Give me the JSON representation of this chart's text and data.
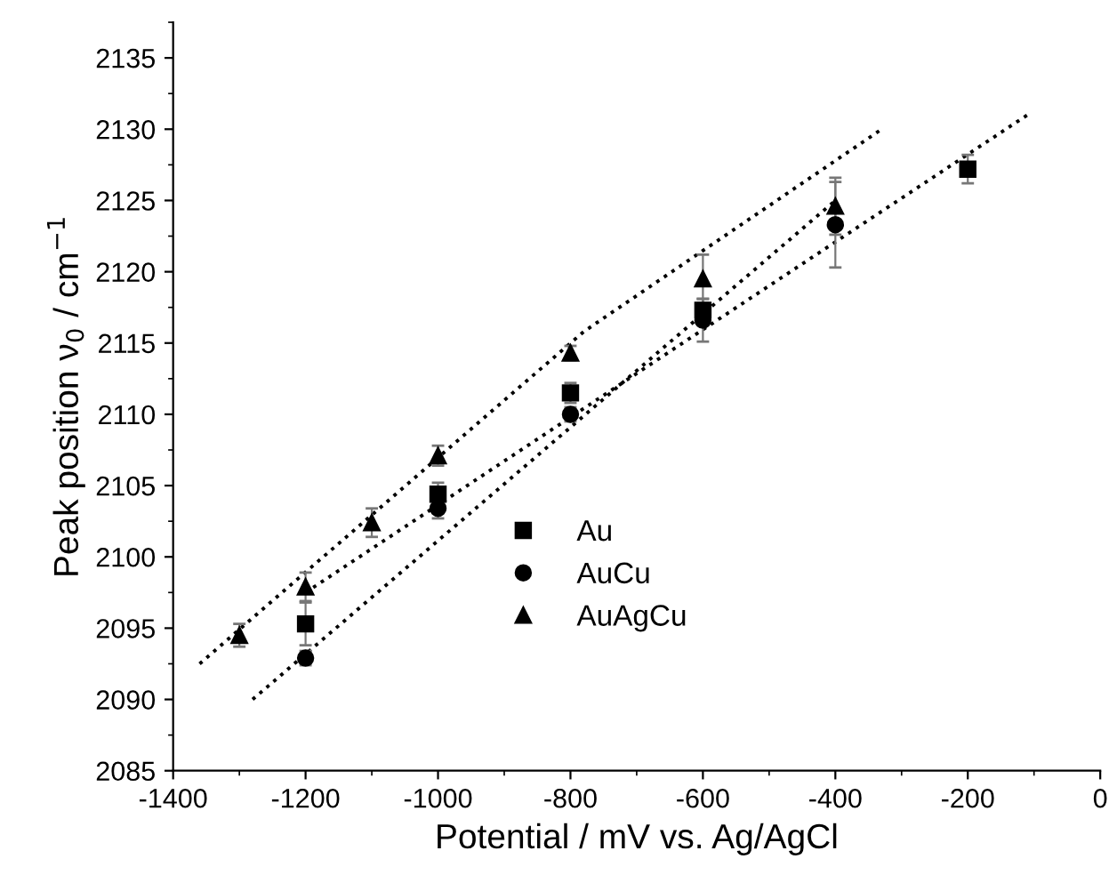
{
  "chart_data": {
    "type": "scatter",
    "xlabel": "Potential / mV vs. Ag/AgCl",
    "ylabel": "Peak position ν$_{0}$ / cm$^{−1}$",
    "xlim": [
      -1400,
      0
    ],
    "ylim": [
      2085,
      2137.5
    ],
    "xticks": [
      -1400,
      -1200,
      -1000,
      -800,
      -600,
      -400,
      -200,
      0
    ],
    "yticks": [
      2085,
      2090,
      2095,
      2100,
      2105,
      2110,
      2115,
      2120,
      2125,
      2130,
      2135
    ],
    "legend": "bottom",
    "grid": false,
    "series": [
      {
        "name": "Au",
        "color": "#000000",
        "marker": "square",
        "x": [
          -1200,
          -1000,
          -800,
          -600,
          -400,
          -200
        ],
        "values": [
          2095.3,
          2104.4,
          2111.5,
          2117.3,
          null,
          2127.2
        ],
        "errors": [
          1.5,
          0.8,
          0.7,
          0.8,
          null,
          1.0
        ]
      },
      {
        "name": "AuCu",
        "color": "#000000",
        "marker": "circle",
        "x": [
          -1200,
          -1000,
          -800,
          -600,
          -400
        ],
        "values": [
          2092.9,
          2103.4,
          2110.0,
          2116.6,
          2123.3
        ],
        "errors": [
          0.5,
          0.7,
          0.5,
          1.5,
          3.0
        ]
      },
      {
        "name": "AuAgCu",
        "color": "#000000",
        "marker": "triangle",
        "x": [
          -1300,
          -1200,
          -1100,
          -1000,
          -800,
          -600,
          -400
        ],
        "values": [
          2094.5,
          2097.9,
          2102.4,
          2107.1,
          2114.3,
          2119.5,
          2124.6
        ],
        "errors": [
          0.8,
          1.0,
          1.0,
          0.7,
          0.5,
          1.7,
          2.0
        ]
      },
      {
        "type": "line",
        "line_style": "dotted",
        "marker": "none",
        "color": "#000000",
        "x": [
          -1360,
          -780,
          -330
        ],
        "values": [
          2092.5,
          2115.8,
          2130
        ]
      },
      {
        "type": "line",
        "line_style": "dotted",
        "marker": "none",
        "color": "#000000",
        "x": [
          -1200,
          -110
        ],
        "values": [
          2097.5,
          2131
        ]
      },
      {
        "type": "line",
        "line_style": "dotted",
        "marker": "none",
        "color": "#000000",
        "x": [
          -1280,
          -400
        ],
        "values": [
          2090,
          2125
        ]
      }
    ]
  }
}
